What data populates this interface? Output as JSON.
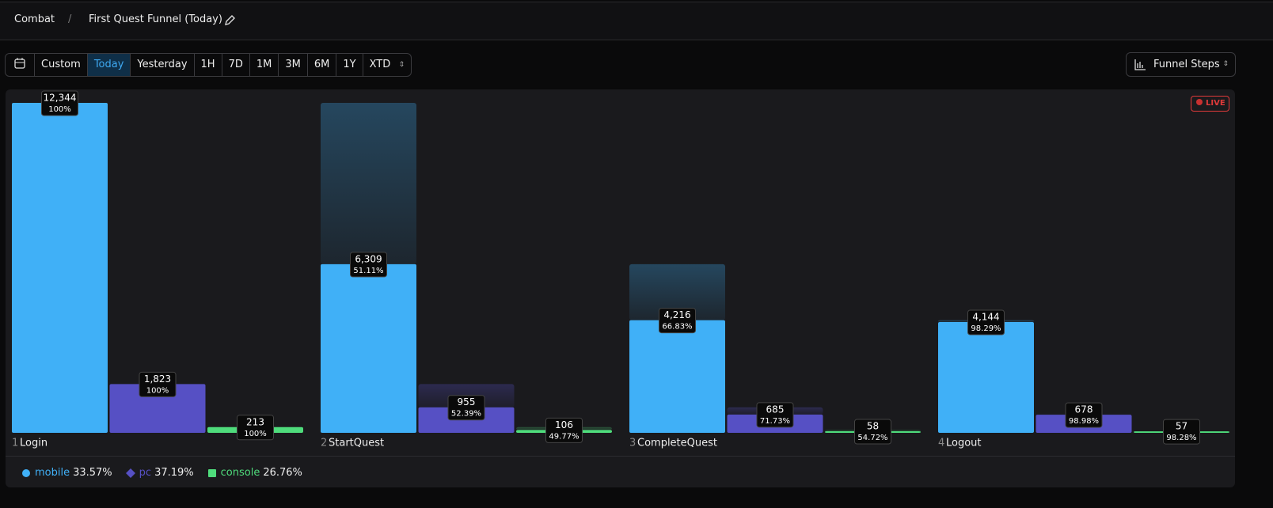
{
  "breadcrumb": {
    "section": "Combat",
    "page": "First Quest Funnel (Today)"
  },
  "toolbar": {
    "ranges": [
      "Custom",
      "Today",
      "Yesterday",
      "1H",
      "7D",
      "1M",
      "3M",
      "6M",
      "1Y",
      "XTD"
    ],
    "active": "Today",
    "view": "Funnel Steps"
  },
  "live_badge": "LIVE",
  "chart_data": {
    "type": "funnel-bar",
    "step_numbers": [
      1,
      2,
      3,
      4
    ],
    "categories": [
      "Login",
      "StartQuest",
      "CompleteQuest",
      "Logout"
    ],
    "series": [
      {
        "name": "mobile",
        "color": "#40b0f7",
        "marker": "circle",
        "share": "33.57%",
        "values": [
          12344,
          6309,
          4216,
          4144
        ],
        "value_labels": [
          "12,344",
          "6,309",
          "4,216",
          "4,144"
        ],
        "conversion": [
          "100%",
          "51.11%",
          "66.83%",
          "98.29%"
        ]
      },
      {
        "name": "pc",
        "color": "#5650c4",
        "marker": "diamond",
        "share": "37.19%",
        "values": [
          1823,
          955,
          685,
          678
        ],
        "value_labels": [
          "1,823",
          "955",
          "685",
          "678"
        ],
        "conversion": [
          "100%",
          "52.39%",
          "71.73%",
          "98.98%"
        ]
      },
      {
        "name": "console",
        "color": "#4fdc7c",
        "marker": "square",
        "share": "26.76%",
        "values": [
          213,
          106,
          58,
          57
        ],
        "conversion": [
          "100%",
          "49.77%",
          "54.72%",
          "98.28%"
        ]
      }
    ]
  }
}
